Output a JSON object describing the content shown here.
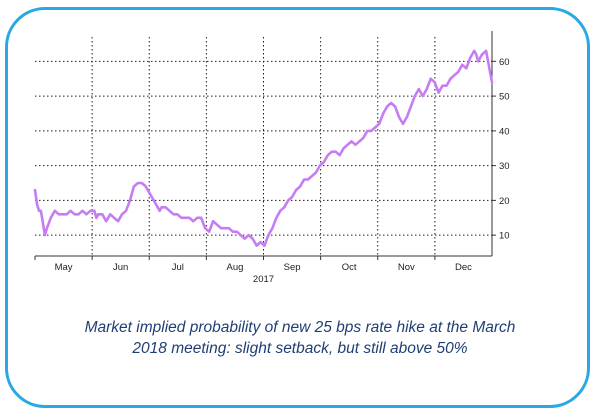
{
  "chart_data": {
    "type": "line",
    "title": "",
    "xlabel": "2017",
    "ylabel": "",
    "ylim": [
      4,
      67
    ],
    "y_ticks": [
      10,
      20,
      30,
      40,
      50,
      60
    ],
    "y_axis_side": "right",
    "months": [
      "May",
      "Jun",
      "Jul",
      "Aug",
      "Sep",
      "Oct",
      "Nov",
      "Dec"
    ],
    "year_label": "2017",
    "grid": true,
    "line_color": "#c67cf3",
    "series": [
      {
        "name": "Implied probability of 25 bps hike at March 2018 meeting (%)",
        "x": [
          0,
          1,
          2,
          3,
          5,
          6,
          8,
          10,
          12,
          14,
          16,
          18,
          20,
          22,
          24,
          26,
          28,
          30,
          31,
          32,
          34,
          36,
          38,
          40,
          42,
          44,
          46,
          48,
          50,
          52,
          54,
          56,
          58,
          60,
          62,
          63,
          64,
          66,
          68,
          70,
          72,
          74,
          76,
          78,
          80,
          82,
          84,
          86,
          88,
          90,
          92,
          94,
          96,
          98,
          100,
          102,
          104,
          106,
          108,
          110,
          112,
          114,
          116,
          118,
          120,
          122,
          124,
          126,
          128,
          130,
          132,
          134,
          136,
          138,
          140,
          142,
          144,
          146,
          148,
          150,
          152,
          154,
          156,
          158,
          160,
          162,
          164,
          166,
          168,
          170,
          172,
          174,
          176,
          178,
          180,
          182,
          184,
          186,
          188,
          190,
          192,
          194,
          196,
          198,
          200,
          202,
          204,
          206,
          208,
          210,
          212,
          214,
          216,
          218,
          220,
          222,
          223,
          224,
          226,
          228,
          230,
          231
        ],
        "y": [
          23,
          19,
          17,
          17,
          10,
          12,
          15,
          17,
          16,
          16,
          16,
          17,
          16,
          16,
          17,
          16,
          17,
          17,
          15,
          16,
          16,
          14,
          16,
          15,
          14,
          16,
          17,
          20,
          24,
          25,
          25,
          24,
          22,
          20,
          18,
          17,
          18,
          18,
          17,
          16,
          16,
          15,
          15,
          15,
          14,
          15,
          15,
          12,
          11,
          14,
          13,
          12,
          12,
          12,
          11,
          11,
          10,
          9,
          10,
          9,
          7,
          8,
          7,
          10,
          12,
          15,
          17,
          18,
          20,
          21,
          23,
          24,
          26,
          26,
          27,
          28,
          30,
          31,
          33,
          34,
          34,
          33,
          35,
          36,
          37,
          36,
          37,
          38,
          40,
          40,
          41,
          42,
          45,
          47,
          48,
          47,
          44,
          42,
          44,
          47,
          50,
          52,
          50,
          52,
          55,
          54,
          51,
          53,
          53,
          55,
          56,
          57,
          59,
          58,
          61,
          63,
          62,
          60,
          62,
          63,
          57,
          54
        ]
      }
    ]
  },
  "caption": {
    "line1": "Market implied probability of new 25 bps rate hike at the March",
    "line2": "2018 meeting: slight setback, but still above 50%"
  }
}
